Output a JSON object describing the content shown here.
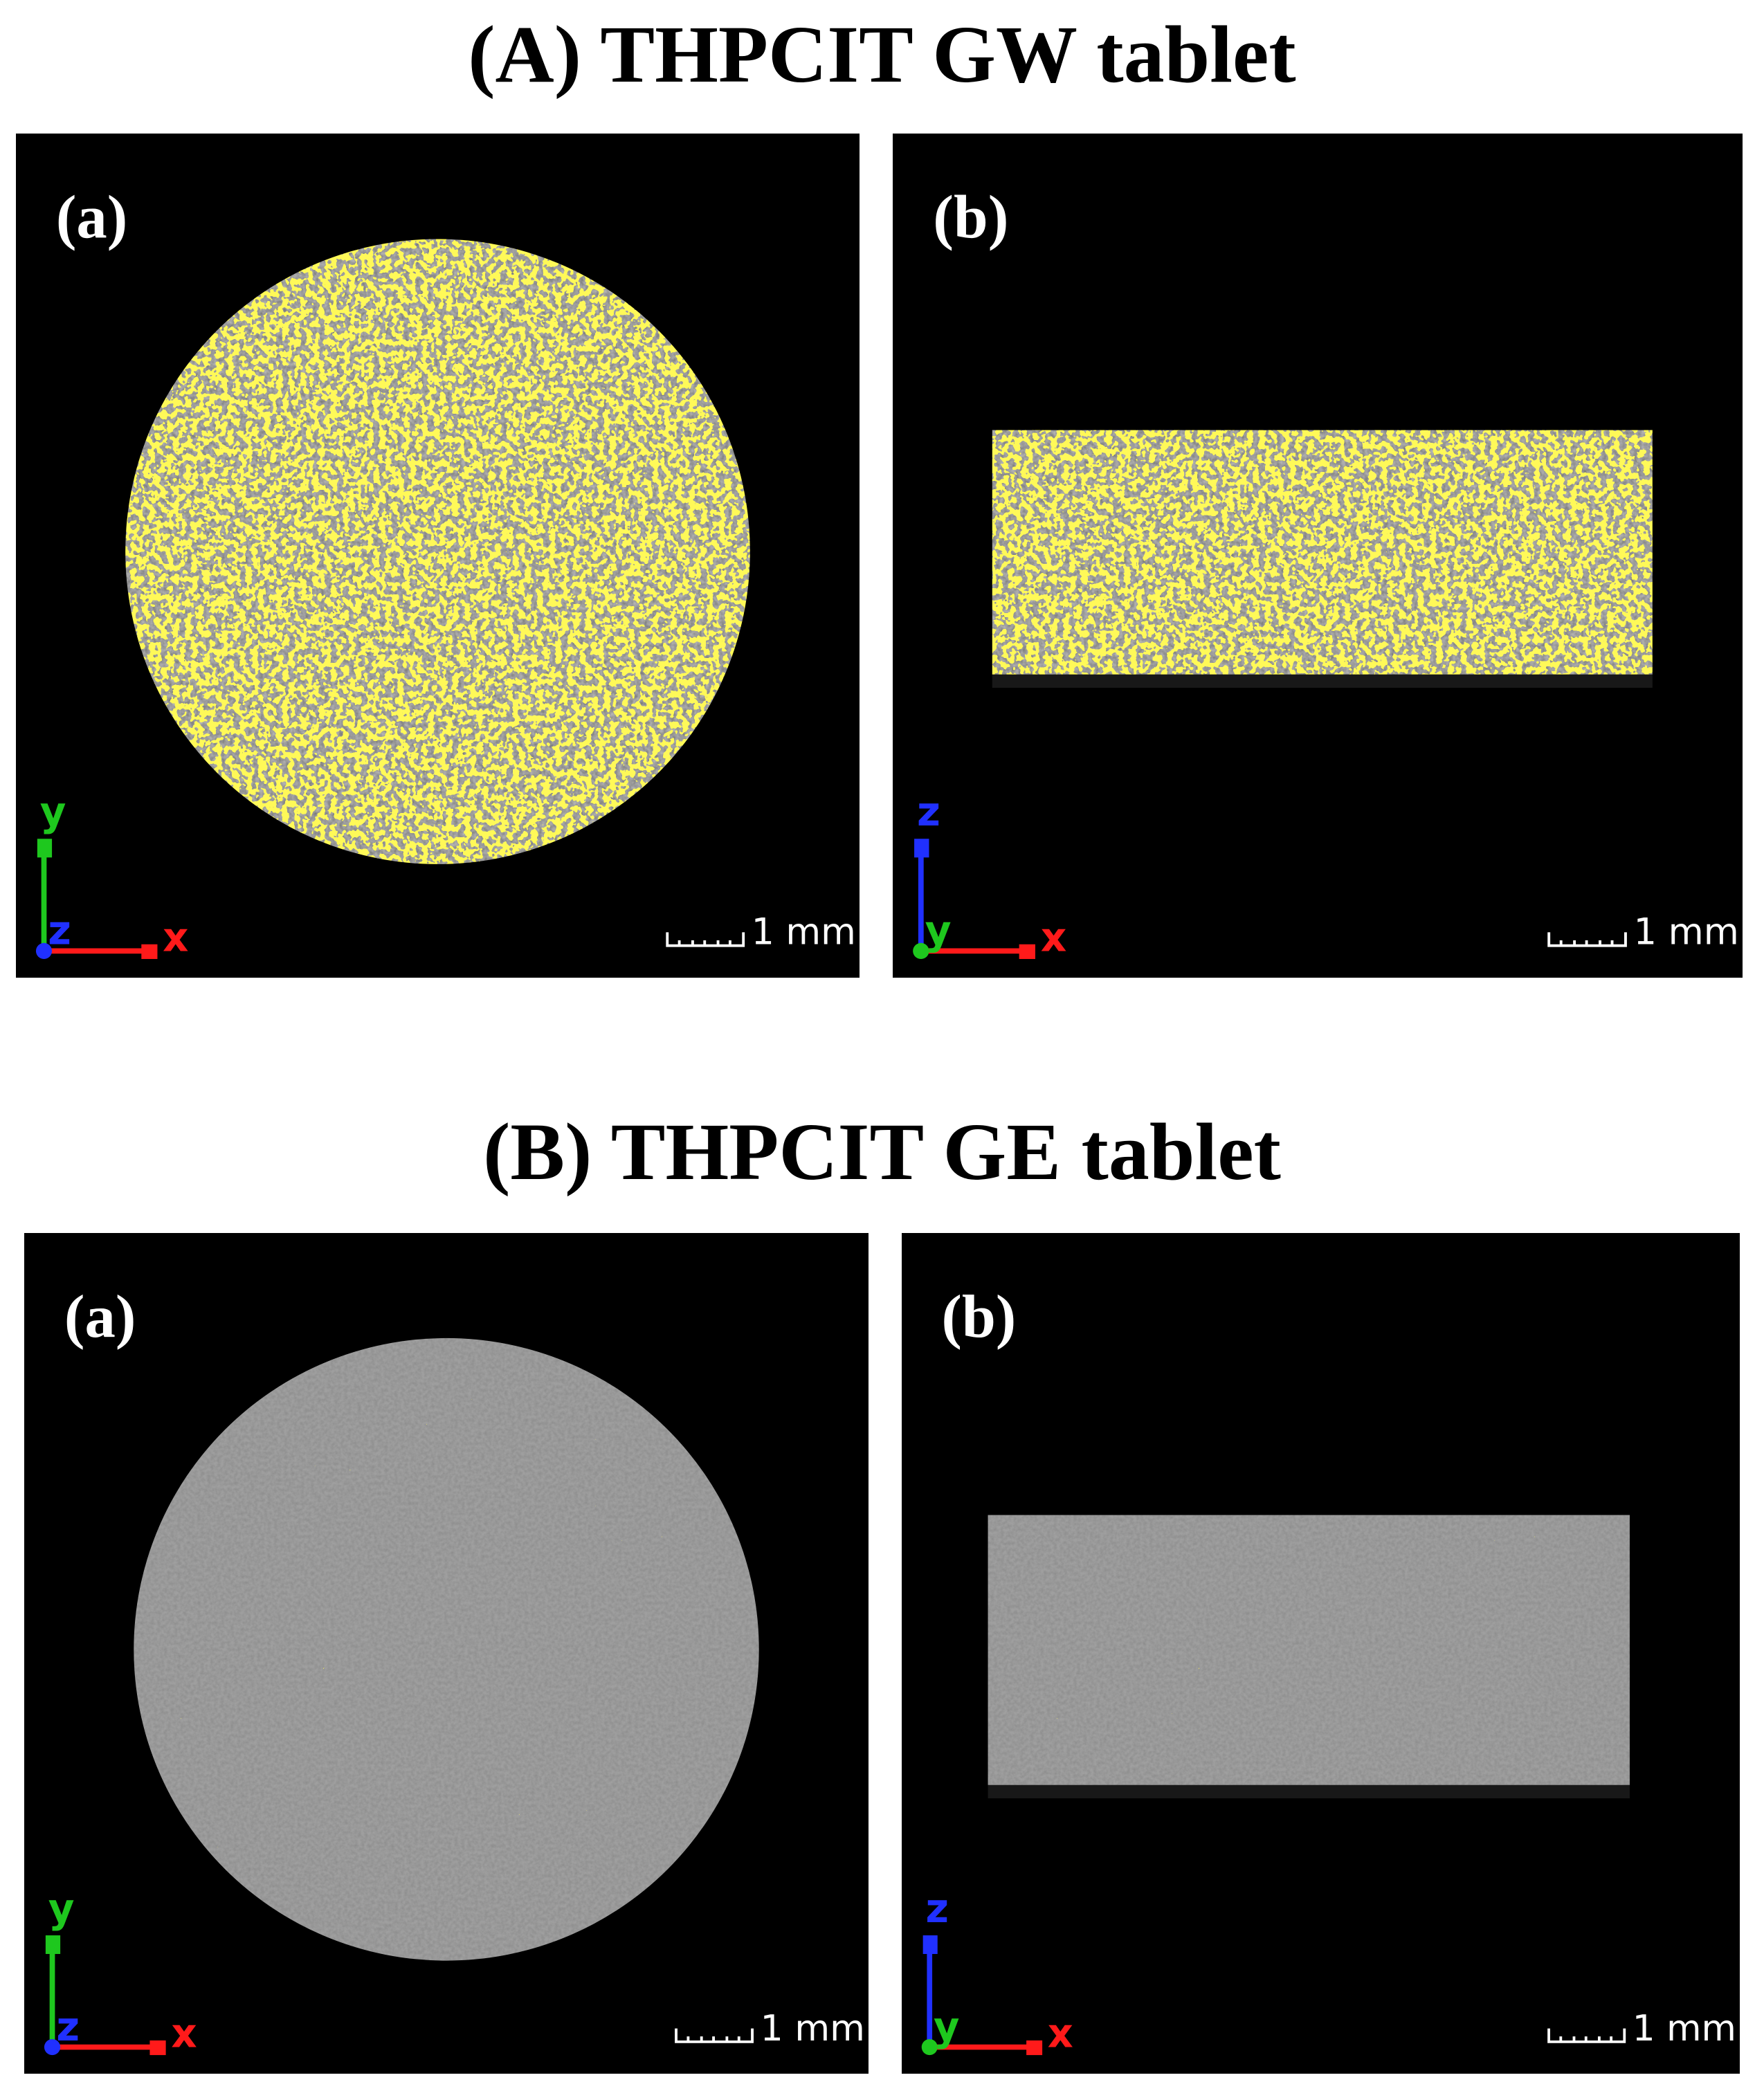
{
  "sections": [
    {
      "title": "(A) THPCIT GW tablet",
      "panels": [
        {
          "label": "(a)",
          "axes": {
            "vertical": "y",
            "depth": "z",
            "horizontal": "x"
          },
          "scale_bar": "1 mm"
        },
        {
          "label": "(b)",
          "axes": {
            "vertical": "z",
            "depth": "y",
            "horizontal": "x"
          },
          "scale_bar": "1 mm"
        }
      ]
    },
    {
      "title": "(B) THPCIT GE tablet",
      "panels": [
        {
          "label": "(a)",
          "axes": {
            "vertical": "y",
            "depth": "z",
            "horizontal": "x"
          },
          "scale_bar": "1 mm"
        },
        {
          "label": "(b)",
          "axes": {
            "vertical": "z",
            "depth": "y",
            "horizontal": "x"
          },
          "scale_bar": "1 mm"
        }
      ]
    }
  ]
}
